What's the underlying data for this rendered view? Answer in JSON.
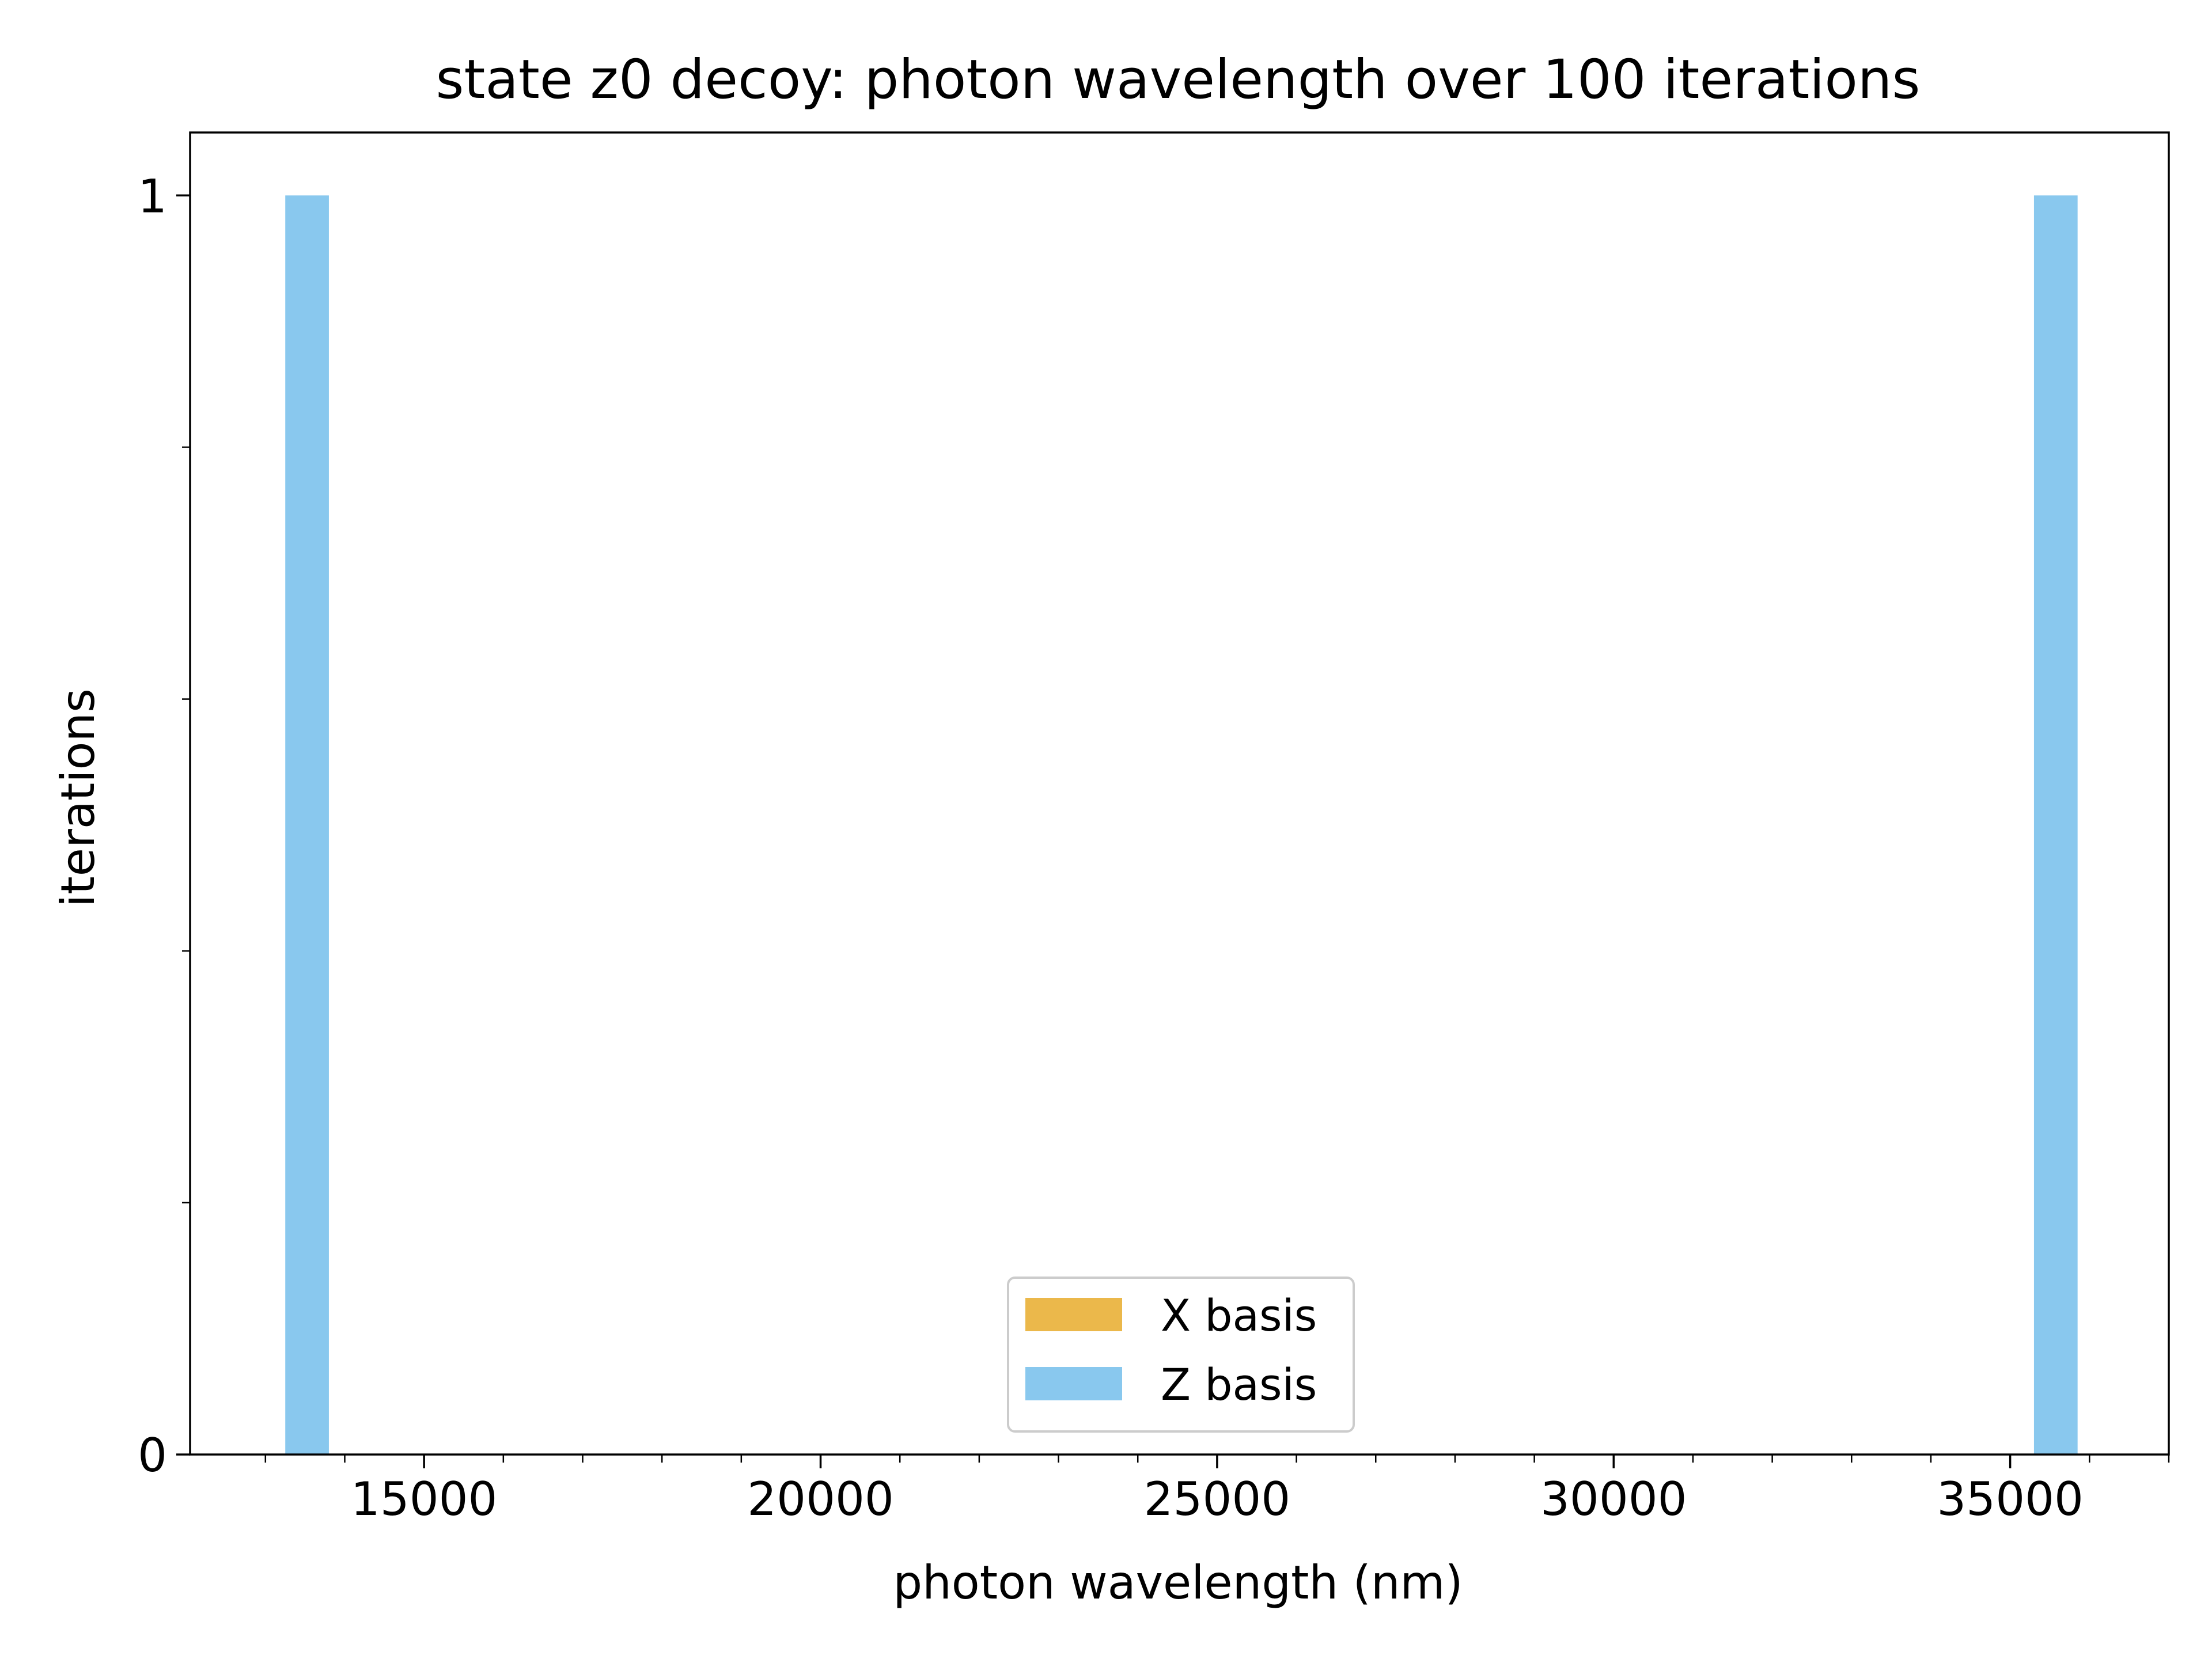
{
  "chart_data": {
    "type": "bar",
    "title": "state z0 decoy: photon wavelength over 100 iterations",
    "xlabel": "photon wavelength (nm)",
    "ylabel": "iterations",
    "xlim": [
      12050,
      37000
    ],
    "ylim": [
      0,
      1.05
    ],
    "x_ticks": [
      15000,
      20000,
      25000,
      30000,
      35000
    ],
    "x_tick_labels": [
      "15000",
      "20000",
      "25000",
      "30000",
      "35000"
    ],
    "x_minor_step": 1000,
    "y_ticks": [
      0,
      1
    ],
    "y_tick_labels": [
      "0",
      "1"
    ],
    "y_minor_ticks": [
      0.2,
      0.4,
      0.6,
      0.8
    ],
    "grid": false,
    "legend_position": "lower center",
    "series": [
      {
        "name": "X basis",
        "color": "#EBB84B",
        "bins": []
      },
      {
        "name": "Z basis",
        "color": "#89C8EE",
        "bins": [
          {
            "x0": 13250,
            "x1": 13800,
            "count": 1
          },
          {
            "x0": 35300,
            "x1": 35850,
            "count": 1
          }
        ]
      }
    ]
  }
}
